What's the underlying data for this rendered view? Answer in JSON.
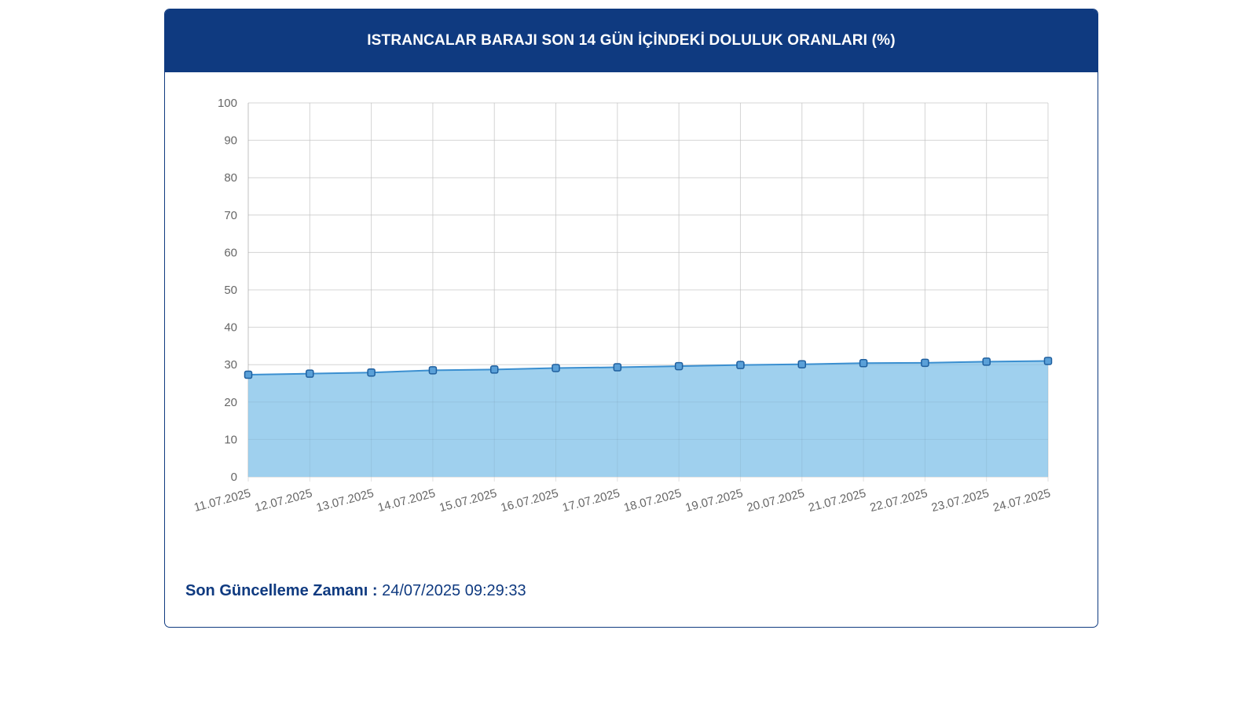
{
  "header": {
    "title": "ISTRANCALAR BARAJI SON 14 GÜN İÇİNDEKİ DOLULUK ORANLARI (%)"
  },
  "colors": {
    "header_bg": "#0f3a80",
    "line": "#3b8fd0",
    "fill": "#9fd0ee",
    "marker_fill": "#5aa0d8",
    "marker_stroke": "#1f5f9e",
    "grid": "#e2e2e2"
  },
  "chart_data": {
    "type": "area",
    "title": "ISTRANCALAR BARAJI SON 14 GÜN İÇİNDEKİ DOLULUK ORANLARI (%)",
    "xlabel": "",
    "ylabel": "",
    "ylim": [
      0,
      100
    ],
    "yticks": [
      0,
      10,
      20,
      30,
      40,
      50,
      60,
      70,
      80,
      90,
      100
    ],
    "grid": true,
    "categories": [
      "11.07.2025",
      "12.07.2025",
      "13.07.2025",
      "14.07.2025",
      "15.07.2025",
      "16.07.2025",
      "17.07.2025",
      "18.07.2025",
      "19.07.2025",
      "20.07.2025",
      "21.07.2025",
      "22.07.2025",
      "23.07.2025",
      "24.07.2025"
    ],
    "series": [
      {
        "values": [
          27.3,
          27.6,
          27.9,
          28.5,
          28.7,
          29.1,
          29.3,
          29.6,
          29.9,
          30.1,
          30.4,
          30.5,
          30.8,
          31.0
        ]
      }
    ]
  },
  "footer": {
    "label": "Son Güncelleme Zamanı :",
    "value": "24/07/2025 09:29:33"
  }
}
